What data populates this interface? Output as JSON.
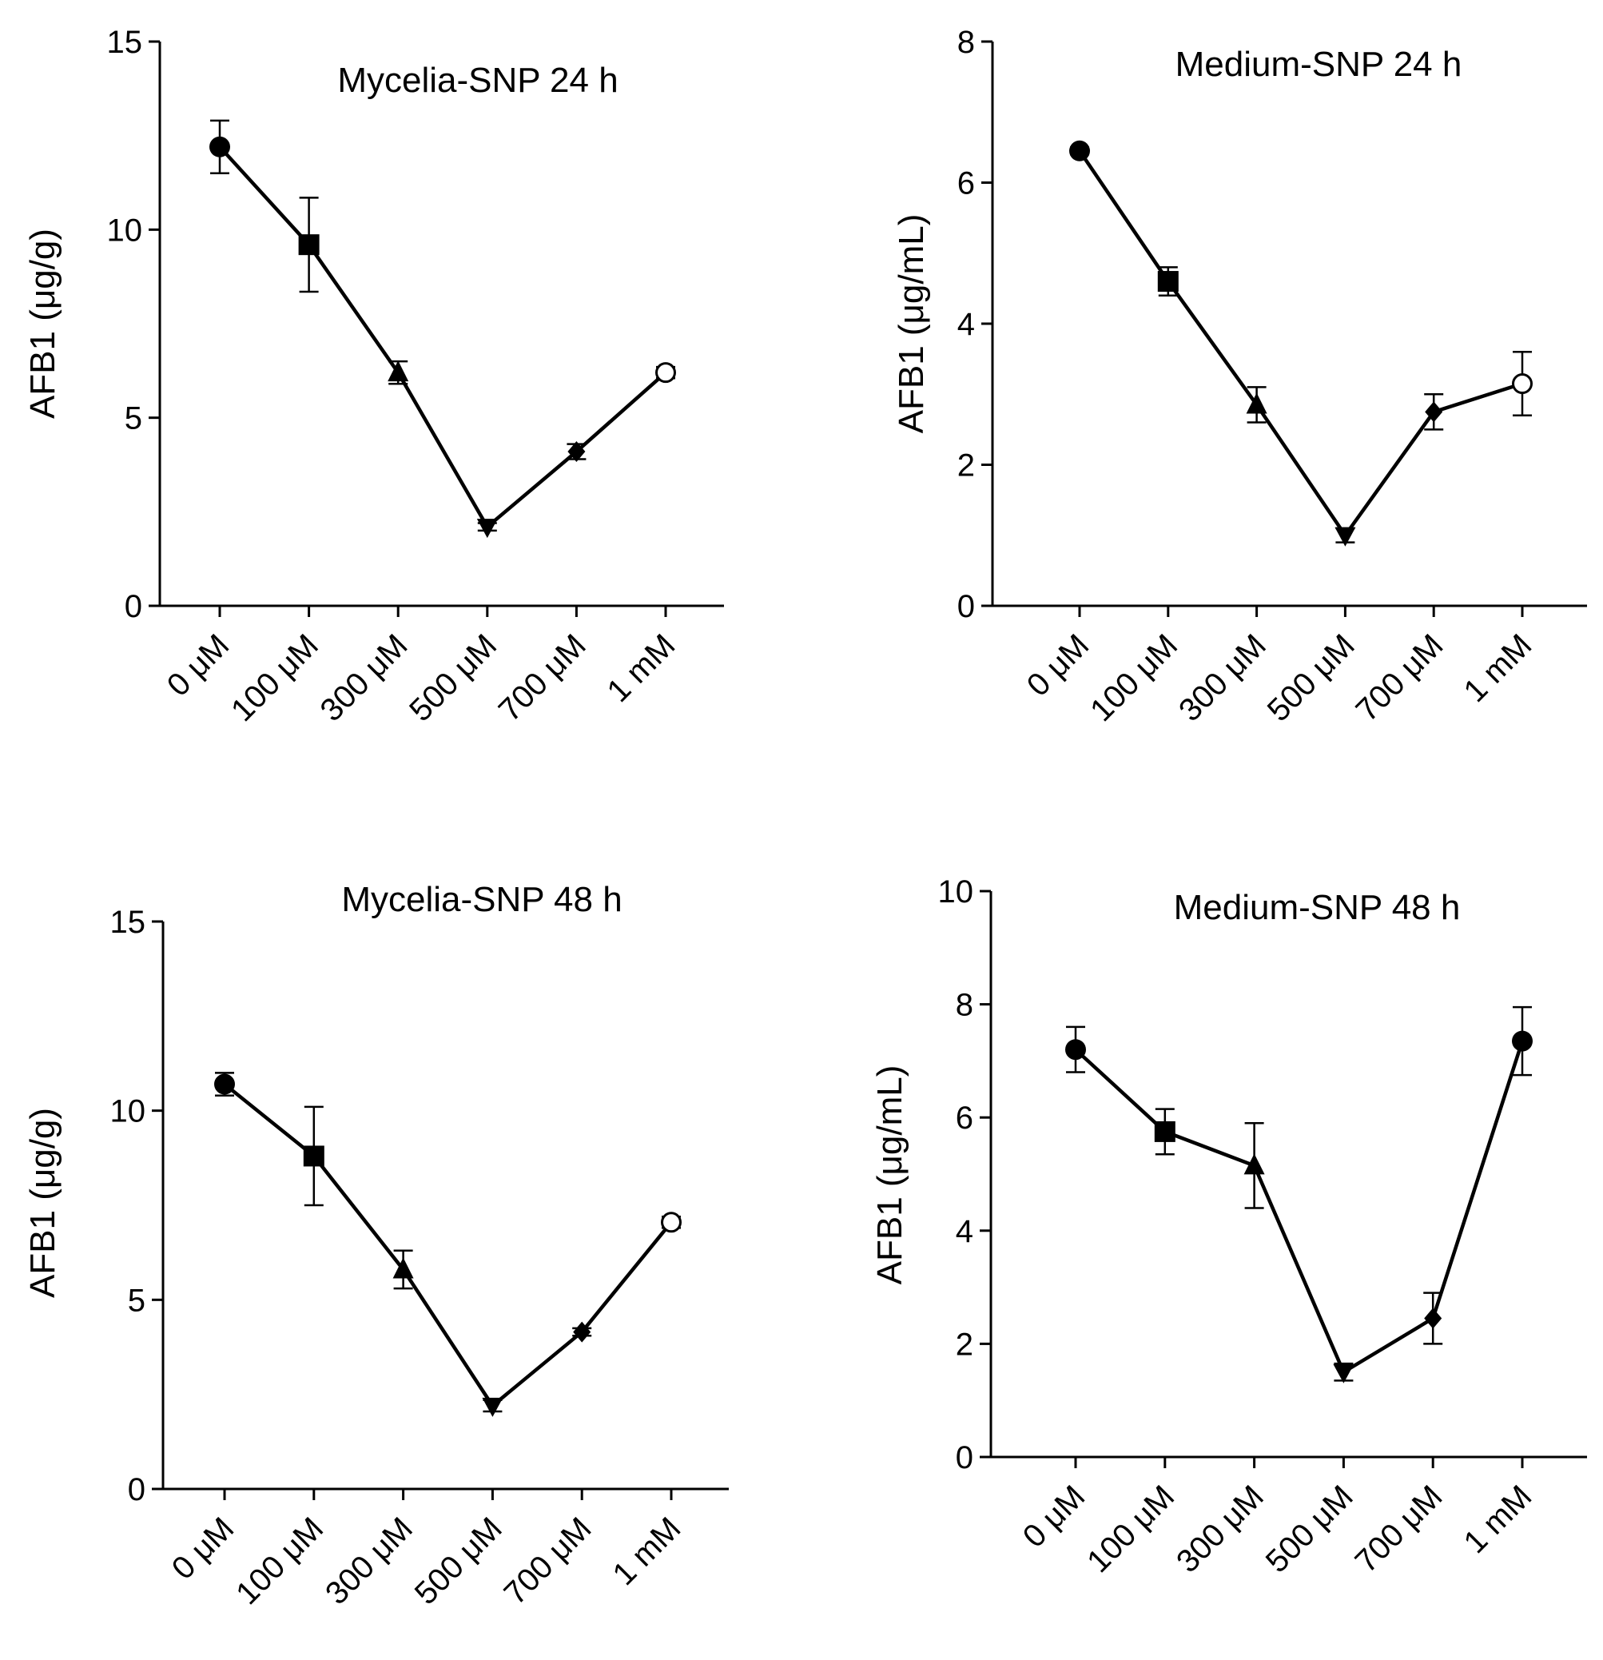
{
  "figure": {
    "description_panels": 4
  },
  "chart_data": [
    {
      "type": "line",
      "title": "Mycelia-SNP 24 h",
      "xlabel": "",
      "ylabel": "AFB1 (μg/g)",
      "categories": [
        "0 μM",
        "100 μM",
        "300 μM",
        "500 μM",
        "700 μM",
        "1 mM"
      ],
      "ylim": [
        0,
        15
      ],
      "yticks": [
        0,
        5,
        10,
        15
      ],
      "series": [
        {
          "name": "AFB1",
          "values": [
            12.2,
            9.6,
            6.2,
            2.1,
            4.1,
            6.2
          ],
          "errors": [
            0.7,
            1.25,
            0.3,
            0.1,
            0.2,
            0.15
          ],
          "markers": [
            "circle",
            "square",
            "triangle",
            "triangle-down",
            "diamond",
            "open-circle"
          ]
        }
      ]
    },
    {
      "type": "line",
      "title": "Medium-SNP 24 h",
      "xlabel": "",
      "ylabel": "AFB1 (μg/mL)",
      "categories": [
        "0 μM",
        "100 μM",
        "300 μM",
        "500 μM",
        "700 μM",
        "1 mM"
      ],
      "ylim": [
        0,
        8
      ],
      "yticks": [
        0,
        2,
        4,
        6,
        8
      ],
      "series": [
        {
          "name": "AFB1",
          "values": [
            6.45,
            4.6,
            2.85,
            1.0,
            2.75,
            3.15
          ],
          "errors": [
            0.05,
            0.2,
            0.25,
            0.1,
            0.25,
            0.45
          ],
          "markers": [
            "circle",
            "square",
            "triangle",
            "triangle-down",
            "diamond",
            "open-circle"
          ]
        }
      ]
    },
    {
      "type": "line",
      "title": "Mycelia-SNP 48 h",
      "xlabel": "",
      "ylabel": "AFB1 (μg/g)",
      "categories": [
        "0 μM",
        "100 μM",
        "300 μM",
        "500 μM",
        "700 μM",
        "1 mM"
      ],
      "ylim": [
        0,
        15
      ],
      "yticks": [
        0,
        5,
        10,
        15
      ],
      "series": [
        {
          "name": "AFB1",
          "values": [
            10.7,
            8.8,
            5.8,
            2.2,
            4.15,
            7.05
          ],
          "errors": [
            0.3,
            1.3,
            0.5,
            0.15,
            0.1,
            0.15
          ],
          "markers": [
            "circle",
            "square",
            "triangle",
            "triangle-down",
            "diamond",
            "open-circle"
          ]
        }
      ]
    },
    {
      "type": "line",
      "title": "Medium-SNP 48 h",
      "xlabel": "",
      "ylabel": "AFB1 (μg/mL)",
      "categories": [
        "0 μM",
        "100 μM",
        "300 μM",
        "500 μM",
        "700 μM",
        "1 mM"
      ],
      "ylim": [
        0,
        10
      ],
      "yticks": [
        0,
        2,
        4,
        6,
        8,
        10
      ],
      "series": [
        {
          "name": "AFB1",
          "values": [
            7.2,
            5.75,
            5.15,
            1.5,
            2.45,
            7.35
          ],
          "errors": [
            0.4,
            0.4,
            0.75,
            0.15,
            0.45,
            0.6
          ],
          "markers": [
            "circle",
            "square",
            "triangle",
            "triangle-down",
            "diamond",
            "circle"
          ]
        }
      ]
    }
  ]
}
